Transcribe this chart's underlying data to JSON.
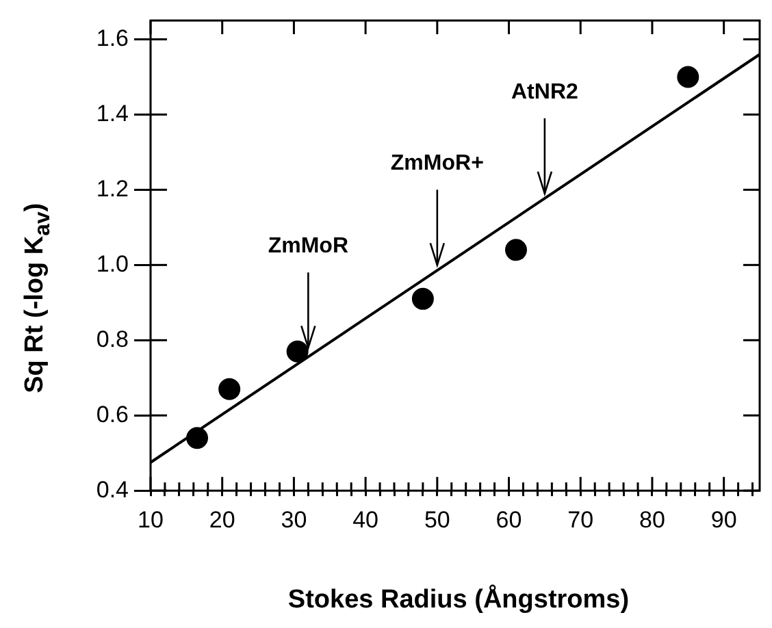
{
  "chart_data": {
    "type": "scatter",
    "xlabel": "Stokes Radius (Ångstroms)",
    "ylabel": "Sq Rt (-log K$_{av}$)",
    "x": [
      16.5,
      21,
      30.5,
      48,
      61,
      85
    ],
    "series": [
      {
        "color": "#000000",
        "values": [
          0.54,
          0.67,
          0.77,
          0.91,
          1.04,
          1.5
        ]
      },
      {
        "type": "line",
        "marker": "none",
        "color": "#000000",
        "x": [
          10,
          95
        ],
        "values": [
          0.475,
          1.56
        ]
      }
    ],
    "marker": "circle",
    "xlim": [
      10,
      95
    ],
    "ylim": [
      0.4,
      1.65
    ],
    "xticks": [
      10,
      {
        "value": 12,
        "label": null
      },
      {
        "value": 14,
        "label": null
      },
      {
        "value": 16,
        "label": null
      },
      {
        "value": 18,
        "label": null
      },
      20,
      {
        "value": 22,
        "label": null
      },
      {
        "value": 24,
        "label": null
      },
      {
        "value": 26,
        "label": null
      },
      {
        "value": 28,
        "label": null
      },
      30,
      {
        "value": 32,
        "label": null
      },
      {
        "value": 34,
        "label": null
      },
      {
        "value": 36,
        "label": null
      },
      {
        "value": 38,
        "label": null
      },
      40,
      {
        "value": 42,
        "label": null
      },
      {
        "value": 44,
        "label": null
      },
      {
        "value": 46,
        "label": null
      },
      {
        "value": 48,
        "label": null
      },
      50,
      {
        "value": 52,
        "label": null
      },
      {
        "value": 54,
        "label": null
      },
      {
        "value": 56,
        "label": null
      },
      {
        "value": 58,
        "label": null
      },
      60,
      {
        "value": 62,
        "label": null
      },
      {
        "value": 64,
        "label": null
      },
      {
        "value": 66,
        "label": null
      },
      {
        "value": 68,
        "label": null
      },
      70,
      {
        "value": 72,
        "label": null
      },
      {
        "value": 74,
        "label": null
      },
      {
        "value": 76,
        "label": null
      },
      {
        "value": 78,
        "label": null
      },
      80,
      {
        "value": 82,
        "label": null
      },
      {
        "value": 84,
        "label": null
      },
      {
        "value": 86,
        "label": null
      },
      {
        "value": 88,
        "label": null
      },
      90,
      {
        "value": 92,
        "label": null
      },
      {
        "value": 94,
        "label": null
      }
    ],
    "yticks": [
      0.4,
      0.6,
      0.8,
      {
        "value": 1,
        "label": "1.0"
      },
      1.2,
      1.4,
      1.6
    ],
    "annotations": [
      {
        "text": "ZmMoR",
        "x": 32,
        "y": 0.78
      },
      {
        "text": "ZmMoR+",
        "x": 50,
        "y": 1.0
      },
      {
        "text": "AtNR2",
        "x": 65,
        "y": 1.19
      }
    ],
    "grid": false,
    "legend": false
  }
}
